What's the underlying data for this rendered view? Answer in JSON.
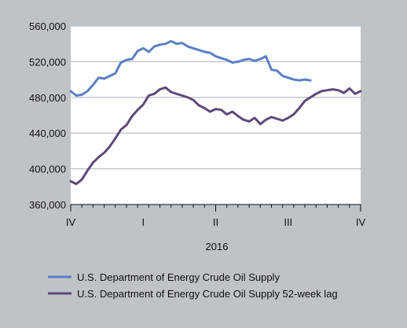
{
  "chart_data": {
    "type": "line",
    "xlabel": "2016",
    "ylabel": "",
    "ylim": [
      360000,
      560000
    ],
    "x_ticks": [
      {
        "label": "IV",
        "pos": 0
      },
      {
        "label": "I",
        "pos": 13
      },
      {
        "label": "II",
        "pos": 26
      },
      {
        "label": "III",
        "pos": 39
      },
      {
        "label": "IV",
        "pos": 52
      }
    ],
    "y_ticks": [
      {
        "value": 360000,
        "label": "360,000"
      },
      {
        "value": 400000,
        "label": "400,000"
      },
      {
        "value": 440000,
        "label": "440,000"
      },
      {
        "value": 480000,
        "label": "480,000"
      },
      {
        "value": 520000,
        "label": "520,000"
      },
      {
        "value": 560000,
        "label": "560,000"
      }
    ],
    "grid": true,
    "legend_position": "bottom",
    "series": [
      {
        "name": "U.S. Department of Energy Crude Oil Supply",
        "color": "#5b7fc4",
        "x": [
          0,
          1,
          2,
          3,
          4,
          5,
          6,
          7,
          8,
          9,
          10,
          11,
          12,
          13,
          14,
          15,
          16,
          17,
          18,
          19,
          20,
          21,
          22,
          23,
          24,
          25,
          26,
          27,
          28,
          29,
          30,
          31,
          32,
          33,
          34,
          35,
          36,
          37,
          38,
          39,
          40,
          41,
          42,
          43
        ],
        "values": [
          487000,
          482000,
          483000,
          487000,
          494000,
          502000,
          501000,
          504000,
          507000,
          519000,
          522000,
          523000,
          532000,
          535000,
          531000,
          537000,
          539000,
          540000,
          543000,
          540000,
          541000,
          537000,
          535000,
          533000,
          531000,
          530000,
          526000,
          524000,
          522000,
          519000,
          520000,
          522000,
          523000,
          521000,
          523000,
          526000,
          511000,
          510000,
          504000,
          502000,
          500000,
          499000,
          500000,
          499000
        ]
      },
      {
        "name": "U.S. Department of Energy Crude Oil Supply 52-week lag",
        "color": "#5c4a78",
        "x": [
          0,
          1,
          2,
          3,
          4,
          5,
          6,
          7,
          8,
          9,
          10,
          11,
          12,
          13,
          14,
          15,
          16,
          17,
          18,
          19,
          20,
          21,
          22,
          23,
          24,
          25,
          26,
          27,
          28,
          29,
          30,
          31,
          32,
          33,
          34,
          35,
          36,
          37,
          38,
          39,
          40,
          41,
          42,
          43,
          44,
          45,
          46,
          47,
          48,
          49,
          50,
          51,
          52
        ],
        "values": [
          386000,
          383000,
          388000,
          398000,
          407000,
          413000,
          418000,
          425000,
          434000,
          444000,
          449000,
          459000,
          466000,
          472000,
          482000,
          484000,
          489000,
          491000,
          486000,
          484000,
          482000,
          480000,
          477000,
          471000,
          468000,
          464000,
          467000,
          466000,
          461000,
          464000,
          459000,
          455000,
          453000,
          457000,
          450000,
          455000,
          458000,
          456000,
          454000,
          457000,
          461000,
          468000,
          476000,
          480000,
          484000,
          487000,
          488000,
          489000,
          488000,
          485000,
          490000,
          484000,
          487000
        ]
      }
    ]
  }
}
